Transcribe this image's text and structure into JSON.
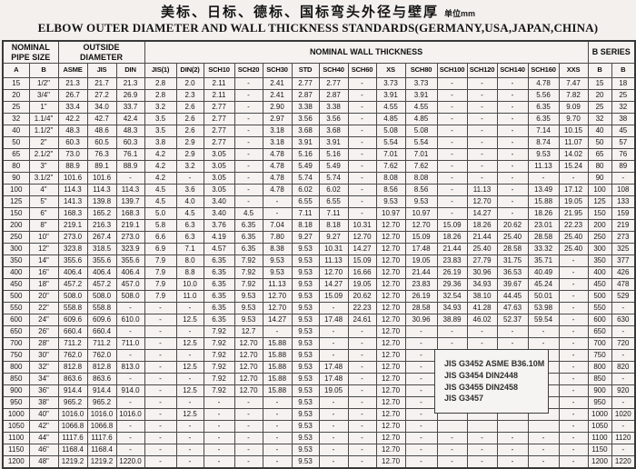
{
  "title": {
    "chinese": "美标、日标、德标、国标弯头外径与壁厚",
    "unit": "单位mm",
    "english": "ELBOW OUTER DIAMETER AND WALL THICKNESS STANDARDS(GERMANY,USA,JAPAN,CHINA)"
  },
  "table": {
    "groups": [
      {
        "label": "NOMINAL\nPIPE SIZE",
        "span": 2
      },
      {
        "label": "OUTSIDE\nDIAMETER",
        "span": 3
      },
      {
        "label": "NOMINAL WALL THICKNESS",
        "span": 15
      },
      {
        "label": "B SERIES",
        "span": 2
      }
    ],
    "column_headers": [
      "A",
      "B",
      "ASME",
      "JIS",
      "DIN",
      "JIS(1)",
      "DIN(2)",
      "SCH10",
      "SCH20",
      "SCH30",
      "STD",
      "SCH40",
      "SCH60",
      "XS",
      "SCH80",
      "SCH100",
      "SCH120",
      "SCH140",
      "SCH160",
      "XXS",
      "B",
      "B"
    ],
    "rows": [
      [
        "15",
        "1/2\"",
        "21.3",
        "21.7",
        "21.3",
        "2.8",
        "2.0",
        "2.11",
        "-",
        "2.41",
        "2.77",
        "2.77",
        "-",
        "3.73",
        "3.73",
        "-",
        "-",
        "-",
        "4.78",
        "7.47",
        "15",
        "18"
      ],
      [
        "20",
        "3/4\"",
        "26.7",
        "27.2",
        "26.9",
        "2.8",
        "2.3",
        "2.11",
        "-",
        "2.41",
        "2.87",
        "2.87",
        "-",
        "3.91",
        "3.91",
        "-",
        "-",
        "-",
        "5.56",
        "7.82",
        "20",
        "25"
      ],
      [
        "25",
        "1\"",
        "33.4",
        "34.0",
        "33.7",
        "3.2",
        "2.6",
        "2.77",
        "-",
        "2.90",
        "3.38",
        "3.38",
        "-",
        "4.55",
        "4.55",
        "-",
        "-",
        "-",
        "6.35",
        "9.09",
        "25",
        "32"
      ],
      [
        "32",
        "1.1/4\"",
        "42.2",
        "42.7",
        "42.4",
        "3.5",
        "2.6",
        "2.77",
        "-",
        "2.97",
        "3.56",
        "3.56",
        "-",
        "4.85",
        "4.85",
        "-",
        "-",
        "-",
        "6.35",
        "9.70",
        "32",
        "38"
      ],
      [
        "40",
        "1.1/2\"",
        "48.3",
        "48.6",
        "48.3",
        "3.5",
        "2.6",
        "2.77",
        "-",
        "3.18",
        "3.68",
        "3.68",
        "-",
        "5.08",
        "5.08",
        "-",
        "-",
        "-",
        "7.14",
        "10.15",
        "40",
        "45"
      ],
      [
        "50",
        "2\"",
        "60.3",
        "60.5",
        "60.3",
        "3.8",
        "2.9",
        "2.77",
        "-",
        "3.18",
        "3.91",
        "3.91",
        "-",
        "5.54",
        "5.54",
        "-",
        "-",
        "-",
        "8.74",
        "11.07",
        "50",
        "57"
      ],
      [
        "65",
        "2.1/2\"",
        "73.0",
        "76.3",
        "76.1",
        "4.2",
        "2.9",
        "3.05",
        "-",
        "4.78",
        "5.16",
        "5.16",
        "-",
        "7.01",
        "7.01",
        "-",
        "-",
        "-",
        "9.53",
        "14.02",
        "65",
        "76"
      ],
      [
        "80",
        "3\"",
        "88.9",
        "89.1",
        "88.9",
        "4.2",
        "3.2",
        "3.05",
        "-",
        "4.78",
        "5.49",
        "5.49",
        "-",
        "7.62",
        "7.62",
        "-",
        "-",
        "-",
        "11.13",
        "15.24",
        "80",
        "89"
      ],
      [
        "90",
        "3.1/2\"",
        "101.6",
        "101.6",
        "-",
        "4.2",
        "-",
        "3.05",
        "-",
        "4.78",
        "5.74",
        "5.74",
        "-",
        "8.08",
        "8.08",
        "-",
        "-",
        "-",
        "-",
        "-",
        "90",
        "-"
      ],
      [
        "100",
        "4\"",
        "114.3",
        "114.3",
        "114.3",
        "4.5",
        "3.6",
        "3.05",
        "-",
        "4.78",
        "6.02",
        "6.02",
        "-",
        "8.56",
        "8.56",
        "-",
        "11.13",
        "-",
        "13.49",
        "17.12",
        "100",
        "108"
      ],
      [
        "125",
        "5\"",
        "141.3",
        "139.8",
        "139.7",
        "4.5",
        "4.0",
        "3.40",
        "-",
        "-",
        "6.55",
        "6.55",
        "-",
        "9.53",
        "9.53",
        "-",
        "12.70",
        "-",
        "15.88",
        "19.05",
        "125",
        "133"
      ],
      [
        "150",
        "6\"",
        "168.3",
        "165.2",
        "168.3",
        "5.0",
        "4.5",
        "3.40",
        "4.5",
        "-",
        "7.11",
        "7.11",
        "-",
        "10.97",
        "10.97",
        "-",
        "14.27",
        "-",
        "18.26",
        "21.95",
        "150",
        "159"
      ],
      [
        "200",
        "8\"",
        "219.1",
        "216.3",
        "219.1",
        "5.8",
        "6.3",
        "3.76",
        "6.35",
        "7.04",
        "8.18",
        "8.18",
        "10.31",
        "12.70",
        "12.70",
        "15.09",
        "18.26",
        "20.62",
        "23.01",
        "22.23",
        "200",
        "219"
      ],
      [
        "250",
        "10\"",
        "273.0",
        "267.4",
        "273.0",
        "6.6",
        "6.3",
        "4.19",
        "6.35",
        "7.80",
        "9.27",
        "9.27",
        "12.70",
        "12.70",
        "15.09",
        "18.26",
        "21.44",
        "25.40",
        "28.58",
        "25.40",
        "250",
        "273"
      ],
      [
        "300",
        "12\"",
        "323.8",
        "318.5",
        "323.9",
        "6.9",
        "7.1",
        "4.57",
        "6.35",
        "8.38",
        "9.53",
        "10.31",
        "14.27",
        "12.70",
        "17.48",
        "21.44",
        "25.40",
        "28.58",
        "33.32",
        "25.40",
        "300",
        "325"
      ],
      [
        "350",
        "14\"",
        "355.6",
        "355.6",
        "355.6",
        "7.9",
        "8.0",
        "6.35",
        "7.92",
        "9.53",
        "9.53",
        "11.13",
        "15.09",
        "12.70",
        "19.05",
        "23.83",
        "27.79",
        "31.75",
        "35.71",
        "-",
        "350",
        "377"
      ],
      [
        "400",
        "16\"",
        "406.4",
        "406.4",
        "406.4",
        "7.9",
        "8.8",
        "6.35",
        "7.92",
        "9.53",
        "9.53",
        "12.70",
        "16.66",
        "12.70",
        "21.44",
        "26.19",
        "30.96",
        "36.53",
        "40.49",
        "-",
        "400",
        "426"
      ],
      [
        "450",
        "18\"",
        "457.2",
        "457.2",
        "457.0",
        "7.9",
        "10.0",
        "6.35",
        "7.92",
        "11.13",
        "9.53",
        "14.27",
        "19.05",
        "12.70",
        "23.83",
        "29.36",
        "34.93",
        "39.67",
        "45.24",
        "-",
        "450",
        "478"
      ],
      [
        "500",
        "20\"",
        "508.0",
        "508.0",
        "508.0",
        "7.9",
        "11.0",
        "6.35",
        "9.53",
        "12.70",
        "9.53",
        "15.09",
        "20.62",
        "12.70",
        "26.19",
        "32.54",
        "38.10",
        "44.45",
        "50.01",
        "-",
        "500",
        "529"
      ],
      [
        "550",
        "22\"",
        "558.8",
        "558.8",
        "-",
        "-",
        "-",
        "6.35",
        "9.53",
        "12.70",
        "9.53",
        "-",
        "22.23",
        "12.70",
        "28.58",
        "34.93",
        "41.28",
        "47.63",
        "53.98",
        "-",
        "550",
        "-"
      ],
      [
        "600",
        "24\"",
        "609.6",
        "609.6",
        "610.0",
        "-",
        "12.5",
        "6.35",
        "9.53",
        "14.27",
        "9.53",
        "17.48",
        "24.61",
        "12.70",
        "30.96",
        "38.89",
        "46.02",
        "52.37",
        "59.54",
        "-",
        "600",
        "630"
      ],
      [
        "650",
        "26\"",
        "660.4",
        "660.4",
        "-",
        "-",
        "-",
        "7.92",
        "12.7",
        "-",
        "9.53",
        "-",
        "-",
        "12.70",
        "-",
        "-",
        "-",
        "-",
        "-",
        "-",
        "650",
        "-"
      ],
      [
        "700",
        "28\"",
        "711.2",
        "711.2",
        "711.0",
        "-",
        "12.5",
        "7.92",
        "12.70",
        "15.88",
        "9.53",
        "-",
        "-",
        "12.70",
        "-",
        "-",
        "-",
        "-",
        "-",
        "-",
        "700",
        "720"
      ],
      [
        "750",
        "30\"",
        "762.0",
        "762.0",
        "-",
        "-",
        "-",
        "7.92",
        "12.70",
        "15.88",
        "9.53",
        "-",
        "-",
        "12.70",
        "-",
        "-",
        "-",
        "-",
        "-",
        "-",
        "750",
        "-"
      ],
      [
        "800",
        "32\"",
        "812.8",
        "812.8",
        "813.0",
        "-",
        "12.5",
        "7.92",
        "12.70",
        "15.88",
        "9.53",
        "17.48",
        "-",
        "12.70",
        "-",
        "",
        "",
        "",
        "",
        "-",
        "800",
        "820"
      ],
      [
        "850",
        "34\"",
        "863.6",
        "863.6",
        "-",
        "-",
        "-",
        "7.92",
        "12.70",
        "15.88",
        "9.53",
        "17.48",
        "-",
        "12.70",
        "-",
        "",
        "",
        "",
        "",
        "-",
        "850",
        "-"
      ],
      [
        "900",
        "36\"",
        "914.4",
        "914.4",
        "914.0",
        "-",
        "12.5",
        "7.92",
        "12.70",
        "15.88",
        "9.53",
        "19.05",
        "-",
        "12.70",
        "-",
        "",
        "",
        "",
        "",
        "-",
        "900",
        "920"
      ],
      [
        "950",
        "38\"",
        "965.2",
        "965.2",
        "-",
        "-",
        "-",
        "-",
        "-",
        "-",
        "9.53",
        "-",
        "-",
        "12.70",
        "-",
        "",
        "",
        "",
        "",
        "-",
        "950",
        "-"
      ],
      [
        "1000",
        "40\"",
        "1016.0",
        "1016.0",
        "1016.0",
        "-",
        "12.5",
        "-",
        "-",
        "-",
        "9.53",
        "-",
        "-",
        "12.70",
        "-",
        "",
        "",
        "",
        "",
        "-",
        "1000",
        "1020"
      ],
      [
        "1050",
        "42\"",
        "1066.8",
        "1066.8",
        "-",
        "-",
        "-",
        "-",
        "-",
        "-",
        "9.53",
        "-",
        "-",
        "12.70",
        "-",
        "",
        "",
        "",
        "",
        "-",
        "1050",
        "-"
      ],
      [
        "1100",
        "44\"",
        "1117.6",
        "1117.6",
        "-",
        "-",
        "-",
        "-",
        "-",
        "-",
        "9.53",
        "-",
        "-",
        "12.70",
        "-",
        "-",
        "-",
        "-",
        "-",
        "-",
        "1100",
        "1120"
      ],
      [
        "1150",
        "46\"",
        "1168.4",
        "1168.4",
        "-",
        "-",
        "-",
        "-",
        "-",
        "-",
        "9.53",
        "-",
        "-",
        "12.70",
        "-",
        "-",
        "-",
        "-",
        "-",
        "-",
        "1150",
        "-"
      ],
      [
        "1200",
        "48\"",
        "1219.2",
        "1219.2",
        "1220.0",
        "-",
        "-",
        "-",
        "-",
        "-",
        "9.53",
        "-",
        "-",
        "12.70",
        "-",
        "-",
        "-",
        "-",
        "-",
        "-",
        "1200",
        "1220"
      ]
    ]
  },
  "note_box": {
    "lines": [
      "JIS G3452 ASME B36.10M",
      "JIS G3454 DIN2448",
      "JIS G3455 DIN2458",
      "JIS G3457"
    ]
  }
}
